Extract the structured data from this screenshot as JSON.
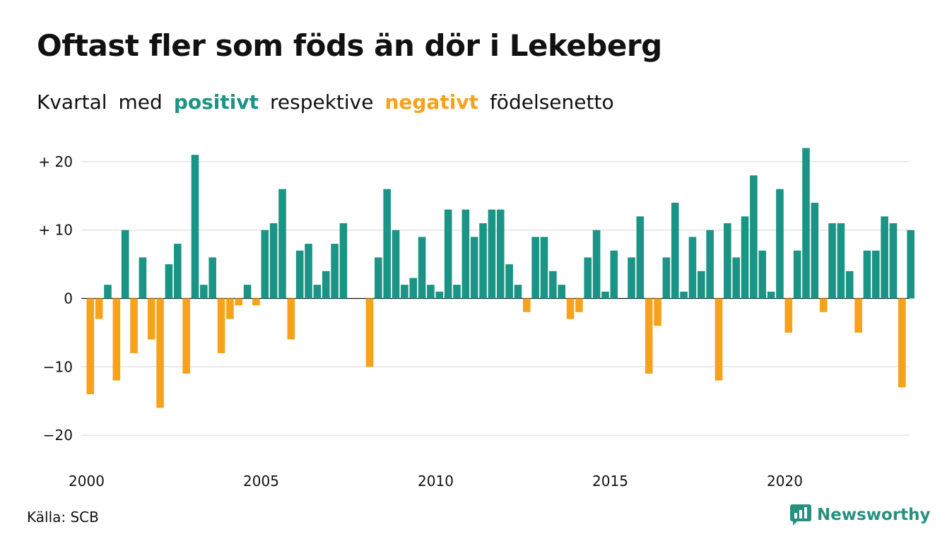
{
  "header": {
    "title": "Oftast fler som föds än dör i Lekeberg"
  },
  "subtitle": {
    "part1": "Kvartal",
    "part2": "med",
    "positive_word": "positivt",
    "part3": "respektive",
    "negative_word": "negativt",
    "part4": "födelsenetto"
  },
  "colors": {
    "positive": "#1a9485",
    "negative": "#f7a21b",
    "grid": "#e3e3e3"
  },
  "chart_data": {
    "type": "bar",
    "x_start": "2000 Q1",
    "values": [
      -14,
      -3,
      2,
      -12,
      10,
      -8,
      6,
      -6,
      -16,
      5,
      8,
      -11,
      21,
      2,
      6,
      -8,
      -3,
      -1,
      2,
      -1,
      10,
      11,
      16,
      -6,
      7,
      8,
      2,
      4,
      8,
      11,
      0,
      0,
      -10,
      6,
      16,
      10,
      2,
      3,
      9,
      2,
      1,
      13,
      2,
      13,
      9,
      11,
      13,
      13,
      5,
      2,
      -2,
      9,
      9,
      4,
      2,
      -3,
      -2,
      6,
      10,
      1,
      7,
      0,
      6,
      12,
      -11,
      -4,
      6,
      14,
      1,
      9,
      4,
      10,
      -12,
      11,
      6,
      12,
      18,
      7,
      1,
      16,
      -5,
      7,
      22,
      14,
      -2,
      11,
      11,
      4,
      -5,
      7,
      7,
      12,
      11,
      -13,
      10
    ],
    "x_ticks": [
      "2000",
      "2005",
      "2010",
      "2015",
      "2020"
    ],
    "y_ticks": [
      "+ 20",
      "+ 10",
      "0",
      "−10",
      "−20"
    ],
    "ylim": [
      -20,
      20
    ],
    "grid": true
  },
  "footer": {
    "source": "Källa: SCB",
    "brand": "Newsworthy"
  },
  "icons": {
    "brand": "newsworthy-logo-icon"
  }
}
